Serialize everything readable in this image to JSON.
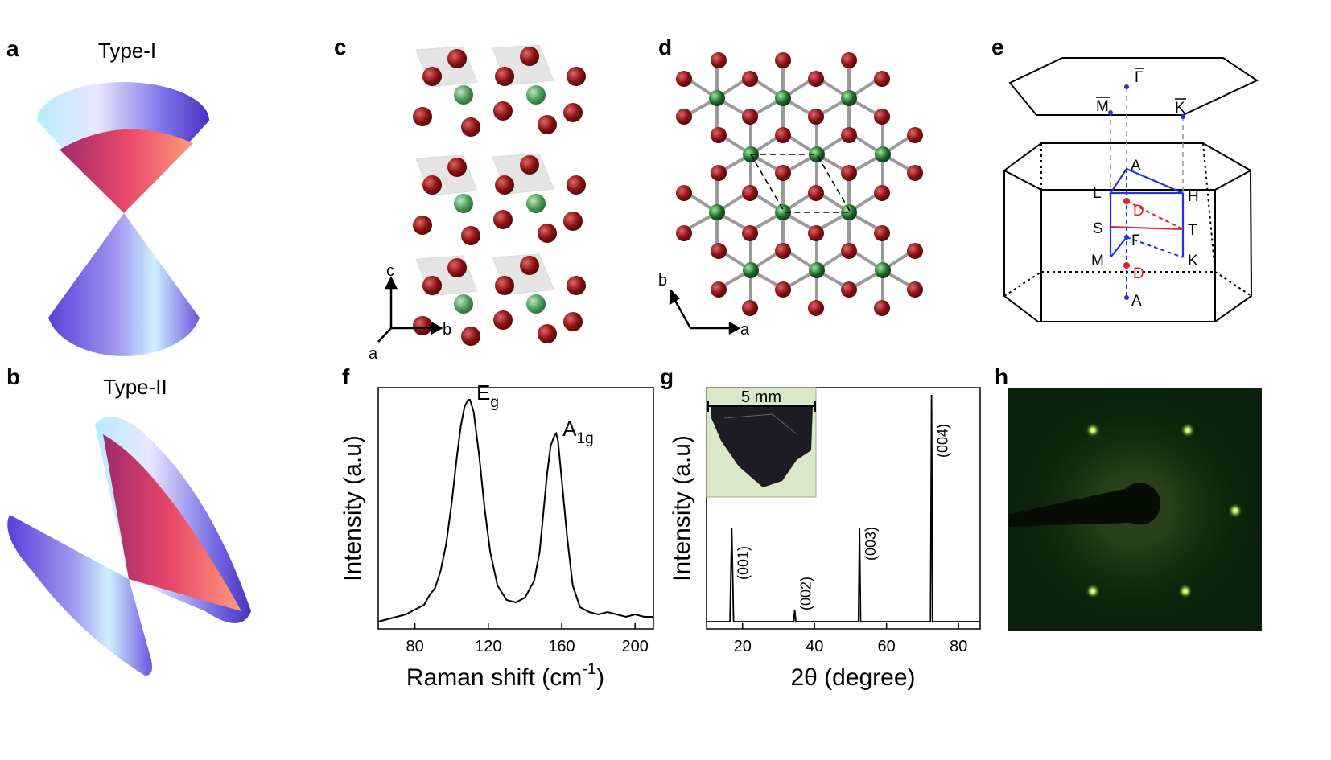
{
  "panels": {
    "a": {
      "label": "a",
      "title": "Type-I"
    },
    "b": {
      "label": "b",
      "title": "Type-II"
    },
    "c": {
      "label": "c",
      "axes": [
        "c",
        "b",
        "a"
      ]
    },
    "d": {
      "label": "d",
      "axes": [
        "b",
        "a"
      ]
    },
    "e": {
      "label": "e",
      "surface_points": [
        "Γ",
        "M",
        "K"
      ],
      "bulk_points": [
        "A",
        "L",
        "H",
        "D",
        "S",
        "T",
        "Γ",
        "M",
        "K",
        "D",
        "A"
      ]
    },
    "f": {
      "label": "f"
    },
    "g": {
      "label": "g",
      "inset_scale": "5 mm"
    },
    "h": {
      "label": "h"
    }
  },
  "chart_data": [
    {
      "type": "line",
      "panel": "f",
      "xlabel": "Raman shift (cm⁻¹)",
      "xlabel_main": "Raman shift (cm",
      "xlabel_sup": "-1",
      "xlabel_close": ")",
      "ylabel": "Intensity (a.u)",
      "xlim": [
        60,
        210
      ],
      "ylim": [
        0,
        1
      ],
      "xticks": [
        80,
        120,
        160,
        200
      ],
      "yticks": [],
      "peaks": [
        {
          "label": "E",
          "sub": "g",
          "x": 110,
          "y": 0.93
        },
        {
          "label": "A",
          "sub": "1g",
          "x": 157,
          "y": 0.78
        }
      ],
      "series": [
        {
          "x": [
            60,
            65,
            70,
            75,
            80,
            85,
            88,
            91,
            94,
            97,
            100,
            103,
            105,
            107,
            109,
            110,
            112,
            115,
            118,
            121,
            125,
            130,
            135,
            140,
            145,
            148,
            150,
            152,
            154,
            156,
            157,
            158,
            160,
            163,
            166,
            170,
            175,
            180,
            185,
            190,
            195,
            200,
            205,
            210
          ],
          "y": [
            0.03,
            0.04,
            0.05,
            0.06,
            0.08,
            0.1,
            0.14,
            0.17,
            0.24,
            0.35,
            0.52,
            0.72,
            0.84,
            0.92,
            0.95,
            0.95,
            0.9,
            0.72,
            0.5,
            0.32,
            0.18,
            0.12,
            0.11,
            0.13,
            0.2,
            0.32,
            0.48,
            0.64,
            0.76,
            0.8,
            0.81,
            0.78,
            0.62,
            0.38,
            0.18,
            0.09,
            0.07,
            0.06,
            0.07,
            0.06,
            0.05,
            0.06,
            0.05,
            0.05
          ]
        }
      ]
    },
    {
      "type": "line",
      "panel": "g",
      "xlabel": "2θ (degree)",
      "ylabel": "Intensity (a.u)",
      "xlim": [
        10,
        86
      ],
      "ylim": [
        0,
        1
      ],
      "xticks": [
        20,
        40,
        60,
        80
      ],
      "yticks": [],
      "peak_labels": [
        {
          "label": "(001)",
          "x": 17
        },
        {
          "label": "(002)",
          "x": 34.5
        },
        {
          "label": "(003)",
          "x": 52.5
        },
        {
          "label": "(004)",
          "x": 72.5
        }
      ],
      "series": [
        {
          "x": [
            10,
            16.5,
            17,
            17.5,
            34.2,
            34.5,
            34.8,
            52.2,
            52.5,
            52.8,
            72.2,
            72.5,
            72.8,
            86
          ],
          "y": [
            0.03,
            0.03,
            0.42,
            0.03,
            0.03,
            0.08,
            0.03,
            0.03,
            0.42,
            0.03,
            0.03,
            0.97,
            0.03,
            0.03
          ]
        }
      ]
    }
  ]
}
